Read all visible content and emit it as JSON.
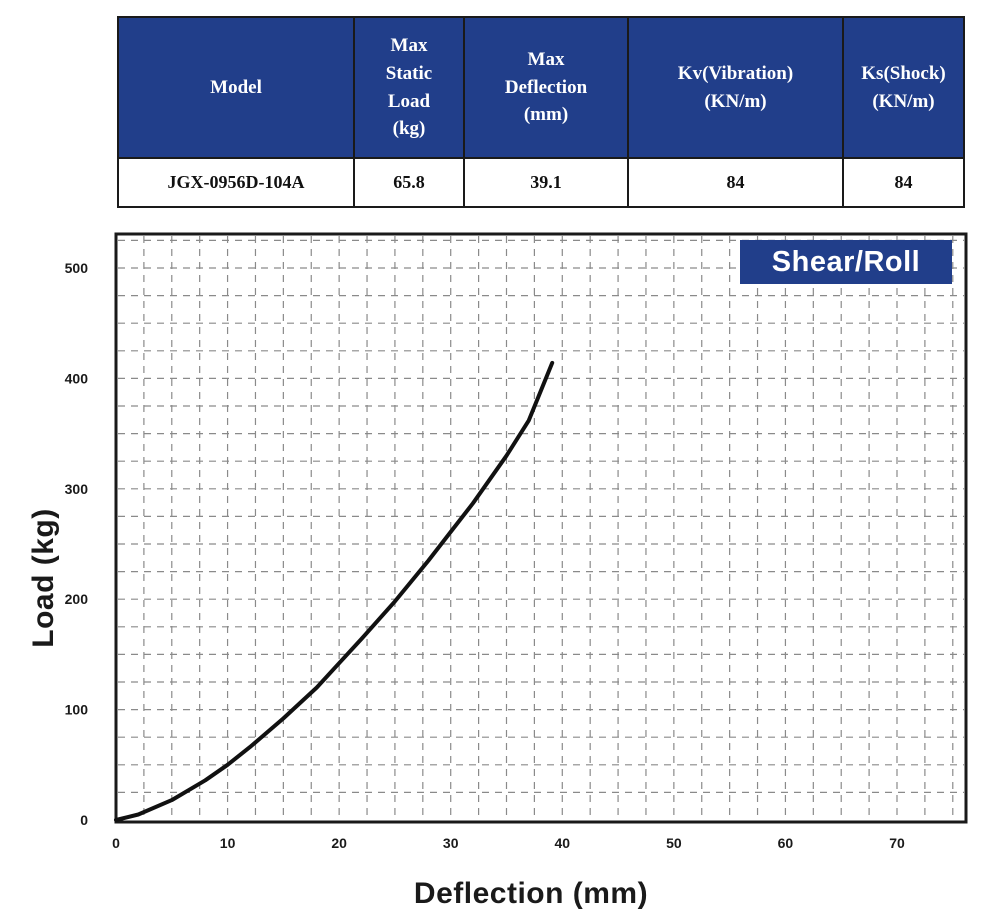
{
  "table": {
    "headers": [
      [
        "Model"
      ],
      [
        "Max",
        "Static",
        "Load",
        "(kg)"
      ],
      [
        "Max",
        "Deflection",
        "(mm)"
      ],
      [
        "Kv(Vibration)",
        "(KN/m)"
      ],
      [
        "Ks(Shock)",
        "(KN/m)"
      ]
    ],
    "row": [
      "JGX-0956D-104A",
      "65.8",
      "39.1",
      "84",
      "84"
    ]
  },
  "chart_data": {
    "type": "line",
    "title": "Shear/Roll",
    "xlabel": "Deflection (mm)",
    "ylabel": "Load (kg)",
    "xlim": [
      0,
      76
    ],
    "ylim": [
      0,
      525
    ],
    "xticks": [
      0,
      10,
      20,
      30,
      40,
      50,
      60,
      70
    ],
    "yticks": [
      0,
      100,
      200,
      300,
      400,
      500
    ],
    "grid": true,
    "grid_style": "dashed",
    "series": [
      {
        "color": "#111111",
        "x": [
          0,
          2,
          5,
          8,
          10,
          12,
          15,
          18,
          20,
          22,
          25,
          28,
          30,
          32,
          35,
          37,
          39.1
        ],
        "y": [
          0,
          5,
          18,
          36,
          50,
          66,
          92,
          120,
          142,
          164,
          198,
          235,
          261,
          287,
          330,
          362,
          414
        ]
      }
    ]
  },
  "colors": {
    "header_bg": "#213e8a",
    "badge_bg": "#213e8a",
    "curve": "#111111"
  }
}
